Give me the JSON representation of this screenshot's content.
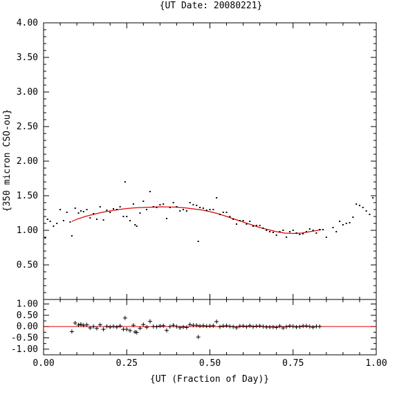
{
  "chart_data": [
    {
      "type": "scatter",
      "title": "{UT Date: 20080221}",
      "xlabel": "",
      "ylabel": "{350 micron CSO-ou}",
      "xlim": [
        0,
        1
      ],
      "ylim": [
        0,
        4
      ],
      "yticks": [
        "0.50",
        "1.00",
        "1.50",
        "2.00",
        "2.50",
        "3.00",
        "3.50",
        "4.00"
      ],
      "ytick_values": [
        0.5,
        1.0,
        1.5,
        2.0,
        2.5,
        3.0,
        3.5,
        4.0
      ],
      "marker_color": "#000000",
      "fit_color": "#e00000",
      "series": [
        {
          "kind": "points",
          "x": [
            0.005,
            0.012,
            0.02,
            0.03,
            0.04,
            0.05,
            0.06,
            0.07,
            0.08,
            0.085,
            0.095,
            0.105,
            0.112,
            0.12,
            0.13,
            0.14,
            0.15,
            0.16,
            0.17,
            0.18,
            0.19,
            0.2,
            0.21,
            0.22,
            0.23,
            0.24,
            0.245,
            0.25,
            0.26,
            0.27,
            0.275,
            0.28,
            0.29,
            0.3,
            0.31,
            0.32,
            0.33,
            0.34,
            0.35,
            0.36,
            0.37,
            0.38,
            0.39,
            0.4,
            0.41,
            0.42,
            0.43,
            0.44,
            0.45,
            0.46,
            0.465,
            0.47,
            0.48,
            0.49,
            0.5,
            0.51,
            0.52,
            0.53,
            0.54,
            0.55,
            0.56,
            0.57,
            0.58,
            0.59,
            0.6,
            0.61,
            0.62,
            0.63,
            0.64,
            0.65,
            0.66,
            0.67,
            0.68,
            0.69,
            0.7,
            0.71,
            0.72,
            0.73,
            0.74,
            0.75,
            0.76,
            0.77,
            0.78,
            0.79,
            0.8,
            0.81,
            0.82,
            0.83,
            0.84,
            0.85,
            0.87,
            0.88,
            0.89,
            0.9,
            0.91,
            0.92,
            0.93,
            0.94,
            0.95,
            0.96,
            0.97,
            0.98,
            0.99
          ],
          "y": [
            0.89,
            1.16,
            1.13,
            1.06,
            1.1,
            1.3,
            1.14,
            1.26,
            1.12,
            0.92,
            1.32,
            1.25,
            1.28,
            1.27,
            1.3,
            1.18,
            1.24,
            1.16,
            1.34,
            1.15,
            1.29,
            1.26,
            1.31,
            1.3,
            1.34,
            1.2,
            1.7,
            1.2,
            1.14,
            1.38,
            1.08,
            1.06,
            1.25,
            1.42,
            1.3,
            1.56,
            1.34,
            1.33,
            1.37,
            1.38,
            1.17,
            1.33,
            1.4,
            1.34,
            1.28,
            1.3,
            1.28,
            1.4,
            1.37,
            1.36,
            0.84,
            1.33,
            1.32,
            1.29,
            1.3,
            1.3,
            1.47,
            1.23,
            1.26,
            1.26,
            1.2,
            1.16,
            1.09,
            1.14,
            1.14,
            1.09,
            1.13,
            1.06,
            1.07,
            1.07,
            1.03,
            1.0,
            0.98,
            0.97,
            0.93,
            0.98,
            1.0,
            0.9,
            0.98,
            1.0,
            0.96,
            0.94,
            0.95,
            0.98,
            1.02,
            1.0,
            0.96,
            1.01,
            1.01,
            0.9,
            1.04,
            0.98,
            1.13,
            1.08,
            1.1,
            1.11,
            1.19,
            1.38,
            1.36,
            1.33,
            1.28,
            1.23,
            1.47
          ]
        },
        {
          "kind": "fit",
          "x": [
            0.085,
            0.1,
            0.125,
            0.15,
            0.175,
            0.2,
            0.225,
            0.25,
            0.275,
            0.3,
            0.325,
            0.35,
            0.375,
            0.4,
            0.425,
            0.45,
            0.475,
            0.5,
            0.525,
            0.55,
            0.575,
            0.6,
            0.625,
            0.65,
            0.675,
            0.7,
            0.725,
            0.75,
            0.775,
            0.8,
            0.825,
            0.835
          ],
          "y": [
            1.13,
            1.16,
            1.2,
            1.23,
            1.26,
            1.28,
            1.3,
            1.315,
            1.325,
            1.33,
            1.335,
            1.34,
            1.338,
            1.335,
            1.325,
            1.31,
            1.295,
            1.27,
            1.24,
            1.2,
            1.16,
            1.12,
            1.08,
            1.04,
            1.01,
            0.98,
            0.96,
            0.955,
            0.96,
            0.98,
            1.0,
            1.01
          ]
        }
      ]
    },
    {
      "type": "scatter",
      "title": "",
      "xlabel": "{UT (Fraction of Day)}",
      "ylabel": "",
      "xlim": [
        0,
        1
      ],
      "ylim": [
        -1.25,
        1.2
      ],
      "xticks": [
        "0.00",
        "0.25",
        "0.50",
        "0.75",
        "1.00"
      ],
      "xtick_values": [
        0,
        0.25,
        0.5,
        0.75,
        1.0
      ],
      "yticks": [
        "-1.00",
        "-0.50",
        "0.00",
        "0.50",
        "1.00"
      ],
      "ytick_values": [
        -1.0,
        -0.5,
        0.0,
        0.5,
        1.0
      ],
      "marker_color": "#000000",
      "zero_line_color": "#e00000",
      "series": [
        {
          "kind": "residuals",
          "x": [
            0.085,
            0.095,
            0.105,
            0.112,
            0.12,
            0.13,
            0.14,
            0.15,
            0.16,
            0.17,
            0.18,
            0.19,
            0.2,
            0.21,
            0.22,
            0.23,
            0.24,
            0.245,
            0.25,
            0.26,
            0.27,
            0.275,
            0.28,
            0.29,
            0.3,
            0.31,
            0.32,
            0.33,
            0.34,
            0.35,
            0.36,
            0.37,
            0.38,
            0.39,
            0.4,
            0.41,
            0.42,
            0.43,
            0.44,
            0.45,
            0.46,
            0.465,
            0.47,
            0.48,
            0.49,
            0.5,
            0.51,
            0.52,
            0.53,
            0.54,
            0.55,
            0.56,
            0.57,
            0.58,
            0.59,
            0.6,
            0.61,
            0.62,
            0.63,
            0.64,
            0.65,
            0.66,
            0.67,
            0.68,
            0.69,
            0.7,
            0.71,
            0.72,
            0.73,
            0.74,
            0.75,
            0.76,
            0.77,
            0.78,
            0.79,
            0.8,
            0.81,
            0.82,
            0.83
          ],
          "y": [
            -0.22,
            0.16,
            0.07,
            0.1,
            0.06,
            0.08,
            -0.06,
            0.0,
            -0.08,
            0.08,
            -0.12,
            0.01,
            -0.02,
            0.01,
            -0.02,
            0.03,
            -0.12,
            0.38,
            -0.12,
            -0.18,
            0.06,
            -0.24,
            -0.26,
            -0.07,
            0.09,
            -0.03,
            0.23,
            0.0,
            -0.01,
            0.03,
            0.04,
            -0.17,
            0.0,
            0.06,
            0.0,
            -0.05,
            -0.02,
            -0.04,
            0.09,
            0.06,
            0.06,
            -0.46,
            0.03,
            0.04,
            0.02,
            0.03,
            0.04,
            0.22,
            -0.01,
            0.03,
            0.04,
            0.01,
            -0.01,
            -0.05,
            0.02,
            0.03,
            -0.01,
            0.04,
            -0.01,
            0.02,
            0.03,
            0.0,
            -0.02,
            -0.02,
            -0.02,
            -0.04,
            0.02,
            -0.06,
            -0.01,
            0.03,
            0.01,
            -0.02,
            -0.01,
            0.03,
            0.03,
            0.0,
            -0.03,
            0.01,
            0.0
          ]
        }
      ]
    }
  ]
}
